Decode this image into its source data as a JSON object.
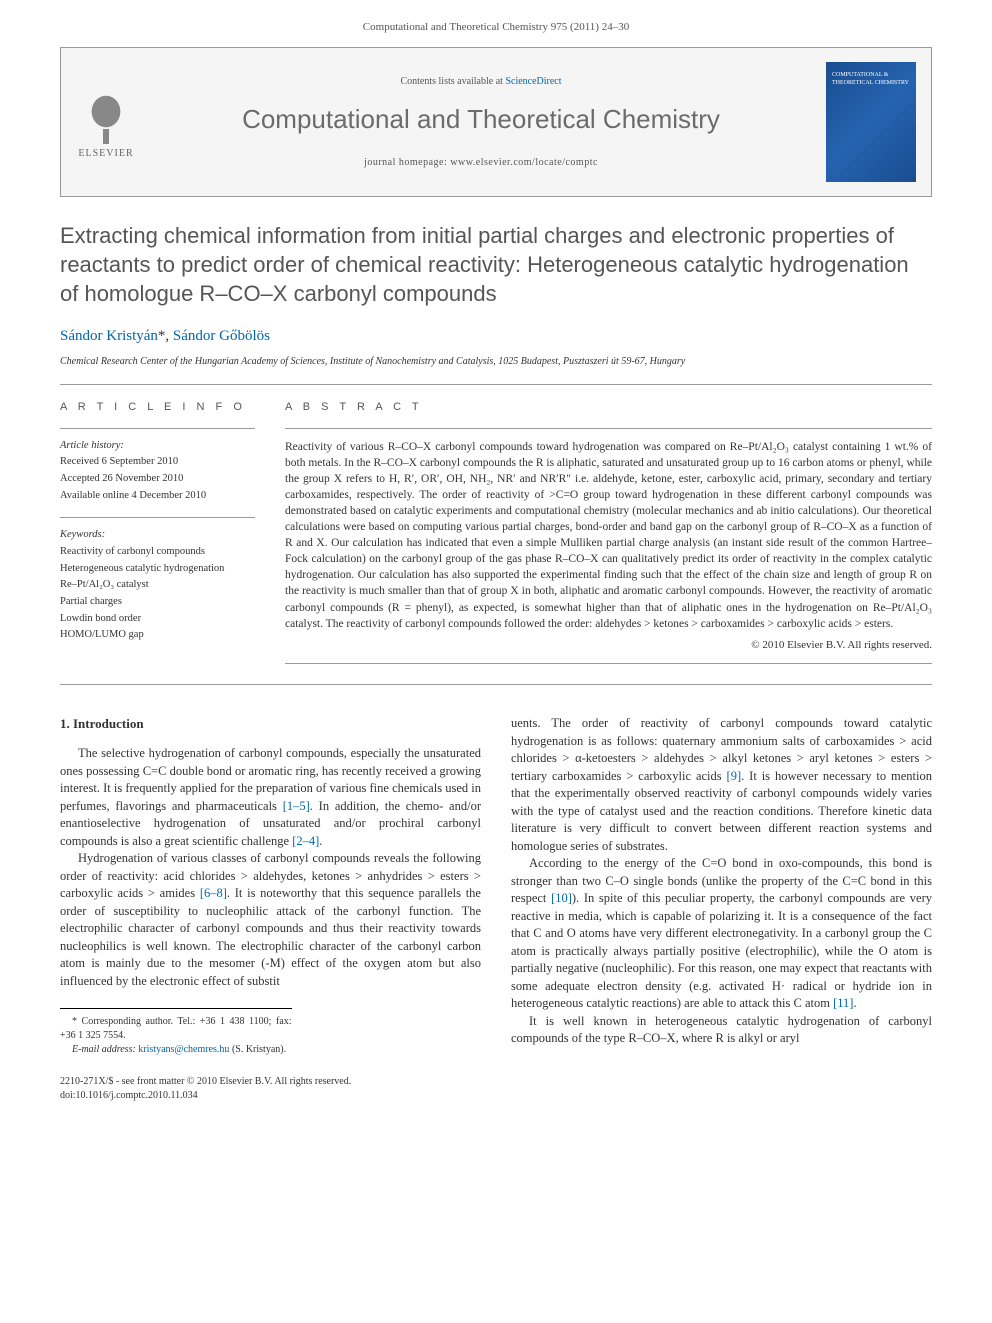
{
  "header": {
    "citation": "Computational and Theoretical Chemistry 975 (2011) 24–30"
  },
  "journal_box": {
    "publisher": "ELSEVIER",
    "contents_prefix": "Contents lists available at ",
    "contents_link": "ScienceDirect",
    "journal_title": "Computational and Theoretical Chemistry",
    "homepage_prefix": "journal homepage: ",
    "homepage_url": "www.elsevier.com/locate/comptc",
    "cover_text": "COMPUTATIONAL & THEORETICAL CHEMISTRY"
  },
  "article": {
    "title": "Extracting chemical information from initial partial charges and electronic properties of reactants to predict order of chemical reactivity: Heterogeneous catalytic hydrogenation of homologue R–CO–X carbonyl compounds",
    "authors_html": "Sándor Kristyán *, Sándor Gőbölös",
    "author1": "Sándor Kristyán",
    "corresp_mark": "*",
    "author_sep": ", ",
    "author2": "Sándor Gőbölös",
    "affiliation": "Chemical Research Center of the Hungarian Academy of Sciences, Institute of Nanochemistry and Catalysis, 1025 Budapest, Pusztaszeri út 59-67, Hungary"
  },
  "info": {
    "heading": "A R T I C L E   I N F O",
    "history_label": "Article history:",
    "received": "Received 6 September 2010",
    "accepted": "Accepted 26 November 2010",
    "online": "Available online 4 December 2010",
    "keywords_label": "Keywords:",
    "kw1": "Reactivity of carbonyl compounds",
    "kw2": "Heterogeneous catalytic hydrogenation",
    "kw3": "Re–Pt/Al₂O₃ catalyst",
    "kw4": "Partial charges",
    "kw5": "Lowdin bond order",
    "kw6": "HOMO/LUMO gap"
  },
  "abstract": {
    "heading": "A B S T R A C T",
    "text": "Reactivity of various R–CO–X carbonyl compounds toward hydrogenation was compared on Re–Pt/Al₂O₃ catalyst containing 1 wt.% of both metals. In the R–CO–X carbonyl compounds the R is aliphatic, saturated and unsaturated group up to 16 carbon atoms or phenyl, while the group X refers to H, R′, OR′, OH, NH₂, NR′ and NR′R″ i.e. aldehyde, ketone, ester, carboxylic acid, primary, secondary and tertiary carboxamides, respectively. The order of reactivity of >C=O group toward hydrogenation in these different carbonyl compounds was demonstrated based on catalytic experiments and computational chemistry (molecular mechanics and ab initio calculations). Our theoretical calculations were based on computing various partial charges, bond-order and band gap on the carbonyl group of R–CO–X as a function of R and X. Our calculation has indicated that even a simple Mulliken partial charge analysis (an instant side result of the common Hartree–Fock calculation) on the carbonyl group of the gas phase R–CO–X can qualitatively predict its order of reactivity in the complex catalytic hydrogenation. Our calculation has also supported the experimental finding such that the effect of the chain size and length of group R on the reactivity is much smaller than that of group X in both, aliphatic and aromatic carbonyl compounds. However, the reactivity of aromatic carbonyl compounds (R = phenyl), as expected, is somewhat higher than that of aliphatic ones in the hydrogenation on Re–Pt/Al₂O₃ catalyst. The reactivity of carbonyl compounds followed the order: aldehydes > ketones > carboxamides > carboxylic acids > esters.",
    "copyright": "© 2010 Elsevier B.V. All rights reserved."
  },
  "body": {
    "section1_heading": "1. Introduction",
    "p1a": "The selective hydrogenation of carbonyl compounds, especially the unsaturated ones possessing C=C double bond or aromatic ring, has recently received a growing interest. It is frequently applied for the preparation of various fine chemicals used in perfumes, flavorings and pharmaceuticals ",
    "ref1": "[1–5]",
    "p1b": ". In addition, the chemo- and/or enantioselective hydrogenation of unsaturated and/or prochiral carbonyl compounds is also a great scientific challenge ",
    "ref2": "[2–4]",
    "p1c": ".",
    "p2a": "Hydrogenation of various classes of carbonyl compounds reveals the following order of reactivity: acid chlorides > aldehydes, ketones > anhydrides > esters > carboxylic acids > amides ",
    "ref3": "[6–8]",
    "p2b": ". It is noteworthy that this sequence parallels the order of susceptibility to nucleophilic attack of the carbonyl function. The electrophilic character of carbonyl compounds and thus their reactivity towards nucleophilics is well known. The electrophilic character of the carbonyl carbon atom is mainly due to the mesomer (-M) effect of the oxygen atom but also influenced by the electronic effect of substit",
    "p3a": "uents. The order of reactivity of carbonyl compounds toward catalytic hydrogenation is as follows: quaternary ammonium salts of carboxamides > acid chlorides > α-ketoesters > aldehydes > alkyl ketones > aryl ketones > esters > tertiary carboxamides > carboxylic acids ",
    "ref4": "[9]",
    "p3b": ". It is however necessary to mention that the experimentally observed reactivity of carbonyl compounds widely varies with the type of catalyst used and the reaction conditions. Therefore kinetic data literature is very difficult to convert between different reaction systems and homologue series of substrates.",
    "p4a": "According to the energy of the C=O bond in oxo-compounds, this bond is stronger than two C–O single bonds (unlike the property of the C=C bond in this respect ",
    "ref5": "[10]",
    "p4b": "). In spite of this peculiar property, the carbonyl compounds are very reactive in media, which is capable of polarizing it. It is a consequence of the fact that C and O atoms have very different electronegativity. In a carbonyl group the C atom is practically always partially positive (electrophilic), while the O atom is partially negative (nucleophilic). For this reason, one may expect that reactants with some adequate electron density (e.g. activated H· radical or hydride ion in heterogeneous catalytic reactions) are able to attack this C atom ",
    "ref6": "[11]",
    "p4c": ".",
    "p5": "It is well known in heterogeneous catalytic hydrogenation of carbonyl compounds of the type R–CO–X, where R is alkyl or aryl"
  },
  "footnote": {
    "corresp": "* Corresponding author. Tel.: +36 1 438 1100; fax: +36 1 325 7554.",
    "email_label": "E-mail address: ",
    "email": "kristyans@chemres.hu",
    "email_suffix": " (S. Kristyan)."
  },
  "footer": {
    "line1": "2210-271X/$ - see front matter © 2010 Elsevier B.V. All rights reserved.",
    "line2": "doi:10.1016/j.comptc.2010.11.034"
  }
}
